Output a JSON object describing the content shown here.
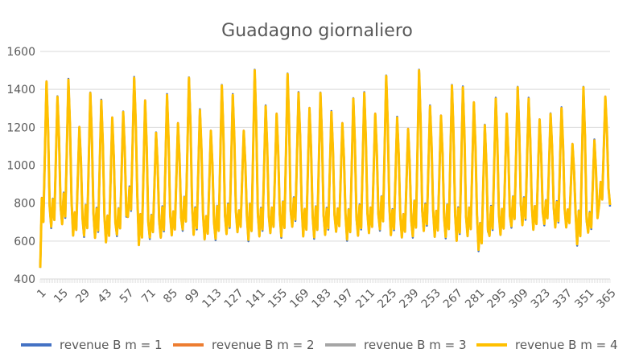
{
  "chart_data": {
    "type": "line",
    "title": "Guadagno giornaliero",
    "xlabel": "",
    "ylabel": "",
    "x_range": [
      1,
      365
    ],
    "x_tick_labels": [
      "1",
      "15",
      "29",
      "43",
      "57",
      "71",
      "85",
      "99",
      "113",
      "127",
      "141",
      "155",
      "169",
      "183",
      "197",
      "211",
      "225",
      "239",
      "253",
      "267",
      "281",
      "295",
      "309",
      "323",
      "337",
      "351",
      "365"
    ],
    "y_tick_labels": [
      "400",
      "600",
      "800",
      "1000",
      "1200",
      "1400",
      "1600"
    ],
    "ylim": [
      400,
      1600
    ],
    "y_grid": true,
    "legend_position": "bottom",
    "series": [
      {
        "name": "revenue B m = 1",
        "color": "#4472c4"
      },
      {
        "name": "revenue B m = 2",
        "color": "#ed7d31"
      },
      {
        "name": "revenue B m = 3",
        "color": "#a5a5a5"
      },
      {
        "name": "revenue B m = 4",
        "color": "#ffc000"
      }
    ],
    "pattern": {
      "start_value": 460,
      "period_days": 7,
      "peak_values": [
        1440,
        1360,
        1450,
        1200,
        1380,
        1340,
        1250,
        1280,
        1460,
        1340,
        1170,
        1370,
        1220,
        1460,
        1290,
        1180,
        1420,
        1370,
        1180,
        1500,
        1310,
        1270,
        1480,
        1380,
        1300,
        1380,
        1280,
        1220,
        1350,
        1380,
        1270,
        1470,
        1250,
        1190,
        1500,
        1310,
        1260,
        1420,
        1410,
        1330,
        1210,
        1350,
        1270,
        1410,
        1350,
        1240,
        1270,
        1300,
        1110,
        1410,
        1130,
        1360
      ],
      "trough_values": [
        620,
        640,
        650,
        600,
        590,
        580,
        560,
        600,
        690,
        540,
        590,
        580,
        600,
        620,
        600,
        580,
        570,
        600,
        620,
        560,
        590,
        610,
        580,
        640,
        590,
        580,
        600,
        620,
        570,
        590,
        610,
        620,
        600,
        590,
        580,
        620,
        590,
        580,
        560,
        590,
        520,
        590,
        600,
        640,
        650,
        630,
        660,
        640,
        650,
        540,
        620,
        760
      ]
    }
  }
}
